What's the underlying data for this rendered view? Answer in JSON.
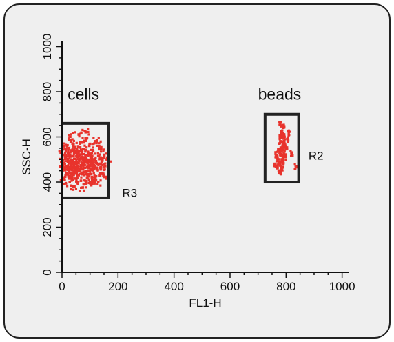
{
  "chart_data": {
    "type": "scatter",
    "title": "",
    "xlabel": "FL1-H",
    "ylabel": "SSC-H",
    "xlim": [
      0,
      1023
    ],
    "ylim": [
      0,
      1023
    ],
    "x_ticks": [
      0,
      200,
      400,
      600,
      800,
      1000
    ],
    "y_ticks": [
      0,
      200,
      400,
      600,
      800,
      1000
    ],
    "grid": false,
    "colors": {
      "points": "#e8332c",
      "gate": "#222222",
      "frame_bg": "#efefef",
      "frame_border": "#222222"
    },
    "annotations": [
      {
        "text": "cells",
        "x": 20,
        "y": 790
      },
      {
        "text": "beads",
        "x": 700,
        "y": 790
      }
    ],
    "gates": [
      {
        "name": "R3",
        "x0": 0,
        "x1": 165,
        "y0": 330,
        "y1": 660,
        "label_x": 215,
        "label_y": 335
      },
      {
        "name": "R2",
        "x0": 725,
        "x1": 845,
        "y0": 400,
        "y1": 700,
        "label_x": 880,
        "label_y": 500
      }
    ],
    "series": [
      {
        "values": [
          {
            "x": 12,
            "y": 510
          },
          {
            "x": 25,
            "y": 530
          },
          {
            "x": 40,
            "y": 495
          },
          {
            "x": 55,
            "y": 520
          },
          {
            "x": 70,
            "y": 540
          },
          {
            "x": 85,
            "y": 505
          },
          {
            "x": 100,
            "y": 525
          },
          {
            "x": 115,
            "y": 500
          },
          {
            "x": 130,
            "y": 515
          },
          {
            "x": 145,
            "y": 495
          },
          {
            "x": 20,
            "y": 470
          },
          {
            "x": 35,
            "y": 455
          },
          {
            "x": 50,
            "y": 480
          },
          {
            "x": 65,
            "y": 460
          },
          {
            "x": 80,
            "y": 475
          },
          {
            "x": 95,
            "y": 450
          },
          {
            "x": 110,
            "y": 470
          },
          {
            "x": 125,
            "y": 455
          },
          {
            "x": 140,
            "y": 465
          },
          {
            "x": 15,
            "y": 440
          },
          {
            "x": 30,
            "y": 425
          },
          {
            "x": 45,
            "y": 445
          },
          {
            "x": 60,
            "y": 430
          },
          {
            "x": 75,
            "y": 440
          },
          {
            "x": 90,
            "y": 420
          },
          {
            "x": 105,
            "y": 435
          },
          {
            "x": 120,
            "y": 420
          },
          {
            "x": 10,
            "y": 410
          },
          {
            "x": 28,
            "y": 400
          },
          {
            "x": 48,
            "y": 415
          },
          {
            "x": 68,
            "y": 405
          },
          {
            "x": 88,
            "y": 395
          },
          {
            "x": 108,
            "y": 410
          },
          {
            "x": 130,
            "y": 400
          },
          {
            "x": 150,
            "y": 430
          },
          {
            "x": 155,
            "y": 470
          },
          {
            "x": 18,
            "y": 560
          },
          {
            "x": 38,
            "y": 570
          },
          {
            "x": 58,
            "y": 555
          },
          {
            "x": 78,
            "y": 575
          },
          {
            "x": 98,
            "y": 560
          },
          {
            "x": 118,
            "y": 580
          },
          {
            "x": 30,
            "y": 600
          },
          {
            "x": 60,
            "y": 610
          },
          {
            "x": 90,
            "y": 595
          },
          {
            "x": 45,
            "y": 380
          },
          {
            "x": 75,
            "y": 375
          },
          {
            "x": 105,
            "y": 385
          },
          {
            "x": 8,
            "y": 485
          },
          {
            "x": 22,
            "y": 490
          },
          {
            "x": 33,
            "y": 478
          },
          {
            "x": 44,
            "y": 502
          },
          {
            "x": 52,
            "y": 488
          },
          {
            "x": 62,
            "y": 498
          },
          {
            "x": 72,
            "y": 485
          },
          {
            "x": 82,
            "y": 492
          },
          {
            "x": 92,
            "y": 482
          },
          {
            "x": 102,
            "y": 490
          },
          {
            "x": 112,
            "y": 484
          },
          {
            "x": 122,
            "y": 492
          },
          {
            "x": 132,
            "y": 480
          },
          {
            "x": 142,
            "y": 488
          },
          {
            "x": 6,
            "y": 455
          },
          {
            "x": 16,
            "y": 465
          },
          {
            "x": 26,
            "y": 450
          },
          {
            "x": 36,
            "y": 462
          },
          {
            "x": 46,
            "y": 452
          },
          {
            "x": 56,
            "y": 468
          },
          {
            "x": 66,
            "y": 448
          },
          {
            "x": 76,
            "y": 458
          },
          {
            "x": 86,
            "y": 446
          },
          {
            "x": 96,
            "y": 462
          },
          {
            "x": 4,
            "y": 520
          },
          {
            "x": 14,
            "y": 535
          },
          {
            "x": 24,
            "y": 515
          },
          {
            "x": 34,
            "y": 540
          },
          {
            "x": 44,
            "y": 525
          },
          {
            "x": 54,
            "y": 545
          },
          {
            "x": 64,
            "y": 520
          },
          {
            "x": 74,
            "y": 510
          },
          {
            "x": 84,
            "y": 535
          },
          {
            "x": 94,
            "y": 515
          },
          {
            "x": 160,
            "y": 500
          },
          {
            "x": 135,
            "y": 545
          },
          {
            "x": 150,
            "y": 520
          },
          {
            "x": 145,
            "y": 440
          },
          {
            "x": 125,
            "y": 575
          },
          {
            "x": 85,
            "y": 620
          },
          {
            "x": 780,
            "y": 660
          },
          {
            "x": 790,
            "y": 640
          },
          {
            "x": 785,
            "y": 620
          },
          {
            "x": 795,
            "y": 600
          },
          {
            "x": 780,
            "y": 580
          },
          {
            "x": 790,
            "y": 565
          },
          {
            "x": 785,
            "y": 550
          },
          {
            "x": 775,
            "y": 540
          },
          {
            "x": 795,
            "y": 535
          },
          {
            "x": 780,
            "y": 525
          },
          {
            "x": 790,
            "y": 515
          },
          {
            "x": 770,
            "y": 505
          },
          {
            "x": 785,
            "y": 500
          },
          {
            "x": 775,
            "y": 490
          },
          {
            "x": 790,
            "y": 485
          },
          {
            "x": 780,
            "y": 475
          },
          {
            "x": 770,
            "y": 465
          },
          {
            "x": 785,
            "y": 460
          },
          {
            "x": 775,
            "y": 450
          },
          {
            "x": 780,
            "y": 440
          },
          {
            "x": 800,
            "y": 555
          },
          {
            "x": 805,
            "y": 590
          },
          {
            "x": 765,
            "y": 520
          },
          {
            "x": 798,
            "y": 510
          },
          {
            "x": 810,
            "y": 620
          },
          {
            "x": 760,
            "y": 480
          },
          {
            "x": 820,
            "y": 530
          },
          {
            "x": 835,
            "y": 470
          },
          {
            "x": 778,
            "y": 605
          },
          {
            "x": 788,
            "y": 595
          },
          {
            "x": 792,
            "y": 575
          },
          {
            "x": 783,
            "y": 545
          }
        ]
      }
    ]
  }
}
